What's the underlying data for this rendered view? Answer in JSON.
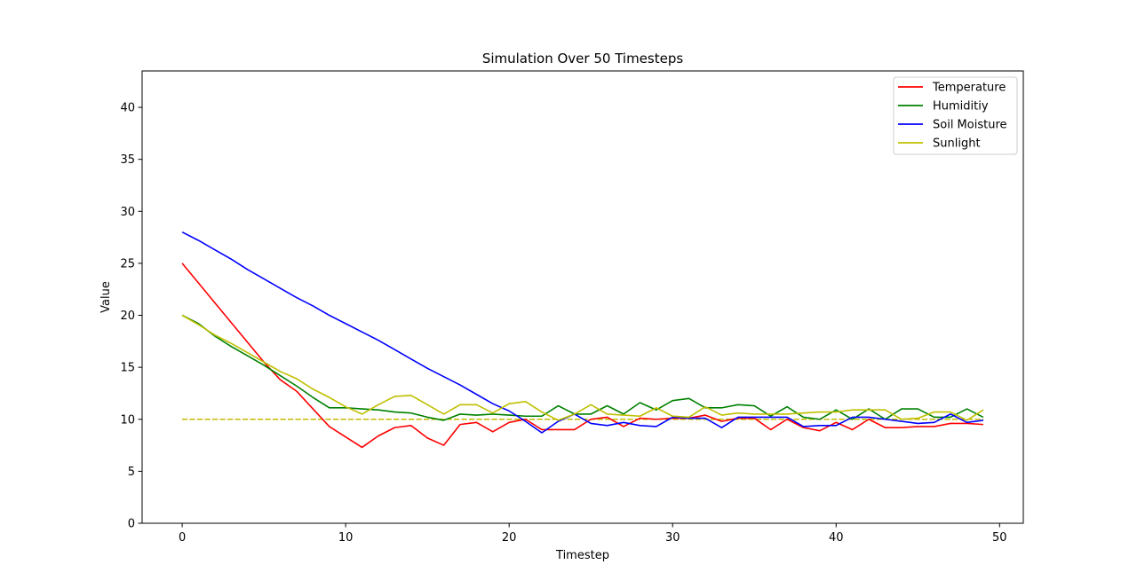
{
  "chart_data": {
    "type": "line",
    "title": "Simulation Over 50 Timesteps",
    "xlabel": "Timestep",
    "ylabel": "Value",
    "xlim": [
      -2.45,
      51.45
    ],
    "ylim": [
      0,
      43.5
    ],
    "xticks": [
      0,
      10,
      20,
      30,
      40,
      50
    ],
    "yticks": [
      0,
      5,
      10,
      15,
      20,
      25,
      30,
      35,
      40
    ],
    "grid": false,
    "legend_position": "upper right",
    "x": [
      0,
      1,
      2,
      3,
      4,
      5,
      6,
      7,
      8,
      9,
      10,
      11,
      12,
      13,
      14,
      15,
      16,
      17,
      18,
      19,
      20,
      21,
      22,
      23,
      24,
      25,
      26,
      27,
      28,
      29,
      30,
      31,
      32,
      33,
      34,
      35,
      36,
      37,
      38,
      39,
      40,
      41,
      42,
      43,
      44,
      45,
      46,
      47,
      48,
      49
    ],
    "series": [
      {
        "name": "Temperature",
        "color": "#ff0000",
        "values": [
          25.0,
          23.1,
          21.2,
          19.3,
          17.4,
          15.5,
          13.8,
          12.7,
          11.0,
          9.3,
          8.3,
          7.3,
          8.4,
          9.2,
          9.4,
          8.2,
          7.5,
          9.5,
          9.7,
          8.8,
          9.7,
          10.0,
          9.0,
          9.0,
          9.0,
          10.0,
          10.2,
          9.3,
          10.1,
          10.0,
          10.1,
          10.1,
          10.4,
          9.8,
          10.1,
          10.1,
          9.0,
          10.0,
          9.2,
          8.9,
          9.7,
          9.0,
          10.0,
          9.2,
          9.2,
          9.3,
          9.3,
          9.6,
          9.6,
          9.5
        ]
      },
      {
        "name": "Humiditiy",
        "color": "#008000",
        "values": [
          20.0,
          19.2,
          18.0,
          17.0,
          16.1,
          15.2,
          14.2,
          13.2,
          12.1,
          11.1,
          11.1,
          11.0,
          10.9,
          10.7,
          10.6,
          10.2,
          9.9,
          10.5,
          10.4,
          10.5,
          10.4,
          10.3,
          10.3,
          11.3,
          10.5,
          10.5,
          11.3,
          10.5,
          11.6,
          10.9,
          11.8,
          12.0,
          11.1,
          11.1,
          11.4,
          11.3,
          10.3,
          11.2,
          10.2,
          10.0,
          10.9,
          10.0,
          11.0,
          10.0,
          11.0,
          11.0,
          10.2,
          10.2,
          11.0,
          10.2
        ]
      },
      {
        "name": "Soil Moisture",
        "color": "#0000ff",
        "values": [
          28.0,
          27.2,
          26.3,
          25.4,
          24.4,
          23.5,
          22.6,
          21.7,
          20.9,
          20.0,
          19.2,
          18.4,
          17.6,
          16.7,
          15.8,
          14.9,
          14.1,
          13.3,
          12.4,
          11.5,
          10.8,
          9.8,
          8.7,
          9.8,
          10.5,
          9.6,
          9.4,
          9.7,
          9.4,
          9.3,
          10.2,
          10.1,
          10.1,
          9.2,
          10.2,
          10.2,
          10.2,
          10.2,
          9.3,
          9.4,
          9.4,
          10.2,
          10.2,
          10.0,
          9.8,
          9.6,
          9.7,
          10.5,
          9.7,
          9.9
        ]
      },
      {
        "name": "Sunlight",
        "color": "#bfbf00",
        "values": [
          20.0,
          19.1,
          18.1,
          17.3,
          16.4,
          15.5,
          14.6,
          13.9,
          12.9,
          12.1,
          11.2,
          10.5,
          11.4,
          12.2,
          12.3,
          11.4,
          10.5,
          11.4,
          11.4,
          10.6,
          11.5,
          11.7,
          10.7,
          9.9,
          10.5,
          11.4,
          10.5,
          10.4,
          10.3,
          11.1,
          10.3,
          10.2,
          11.2,
          10.4,
          10.6,
          10.5,
          10.5,
          10.5,
          10.6,
          10.7,
          10.7,
          10.9,
          10.9,
          10.9,
          10.0,
          10.1,
          10.7,
          10.7,
          9.9,
          10.9
        ]
      },
      {
        "name": "",
        "color": "#ff0000",
        "dashed": true,
        "values": [
          10,
          10,
          10,
          10,
          10,
          10,
          10,
          10,
          10,
          10,
          10,
          10,
          10,
          10,
          10,
          10,
          10,
          10,
          10,
          10,
          10,
          10,
          10,
          10,
          10,
          10,
          10,
          10,
          10,
          10,
          10,
          10,
          10,
          10,
          10,
          10,
          10,
          10,
          10,
          10,
          10,
          10,
          10,
          10,
          10,
          10,
          10,
          10,
          10,
          10
        ]
      },
      {
        "name": "",
        "color": "#bfbf00",
        "dashed": true,
        "values": [
          10,
          10,
          10,
          10,
          10,
          10,
          10,
          10,
          10,
          10,
          10,
          10,
          10,
          10,
          10,
          10,
          10,
          10,
          10,
          10,
          10,
          10,
          10,
          10,
          10,
          10,
          10,
          10,
          10,
          10,
          10,
          10,
          10,
          10,
          10,
          10,
          10,
          10,
          10,
          10,
          10,
          10,
          10,
          10,
          10,
          10,
          10,
          10,
          10,
          10
        ]
      }
    ]
  }
}
